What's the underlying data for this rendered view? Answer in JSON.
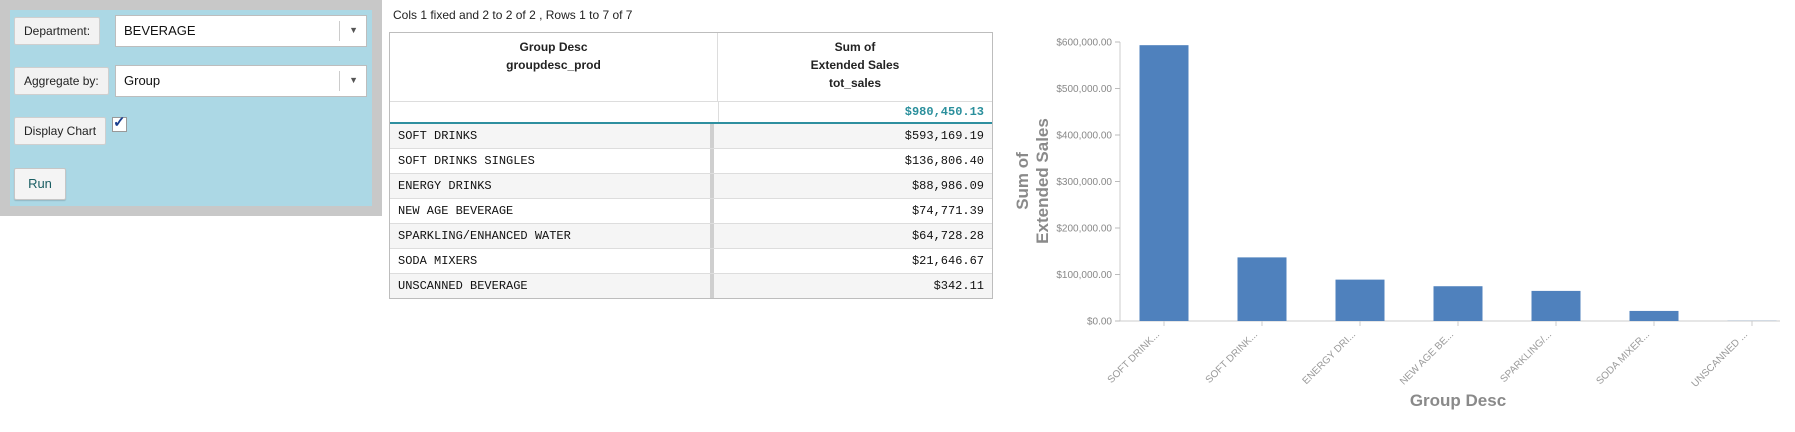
{
  "controls": {
    "department_label": "Department:",
    "department_value": "BEVERAGE",
    "aggregate_label": "Aggregate by:",
    "aggregate_value": "Group",
    "display_chart_label": "Display Chart",
    "display_chart_checked": true,
    "run_label": "Run"
  },
  "table": {
    "info": "Cols 1 fixed and 2 to 2 of 2 , Rows 1 to 7 of 7",
    "col1_header": [
      "Group Desc",
      "groupdesc_prod"
    ],
    "col2_header": [
      "Sum of",
      "Extended Sales",
      "tot_sales"
    ],
    "total": "$980,450.13",
    "rows": [
      {
        "group": "SOFT DRINKS",
        "sales": "$593,169.19"
      },
      {
        "group": "SOFT DRINKS SINGLES",
        "sales": "$136,806.40"
      },
      {
        "group": "ENERGY DRINKS",
        "sales": "$88,986.09"
      },
      {
        "group": "NEW AGE BEVERAGE",
        "sales": "$74,771.39"
      },
      {
        "group": "SPARKLING/ENHANCED WATER",
        "sales": "$64,728.28"
      },
      {
        "group": "SODA MIXERS",
        "sales": "$21,646.67"
      },
      {
        "group": "UNSCANNED BEVERAGE",
        "sales": "$342.11"
      }
    ]
  },
  "chart_data": {
    "type": "bar",
    "categories": [
      "SOFT DRINK...",
      "SOFT DRINK...",
      "ENERGY DRI...",
      "NEW AGE BE...",
      "SPARKLING/...",
      "SODA MIXER...",
      "UNSCANNED ..."
    ],
    "values": [
      593169.19,
      136806.4,
      88986.09,
      74771.39,
      64728.28,
      21646.67,
      342.11
    ],
    "ylim": [
      0,
      600000
    ],
    "yticks": [
      "$0.00",
      "$100,000.00",
      "$200,000.00",
      "$300,000.00",
      "$400,000.00",
      "$500,000.00",
      "$600,000.00"
    ],
    "ylabel": [
      "Sum of",
      "Extended Sales"
    ],
    "xlabel": "Group Desc",
    "bar_color": "#4f81bd",
    "grid": false
  }
}
